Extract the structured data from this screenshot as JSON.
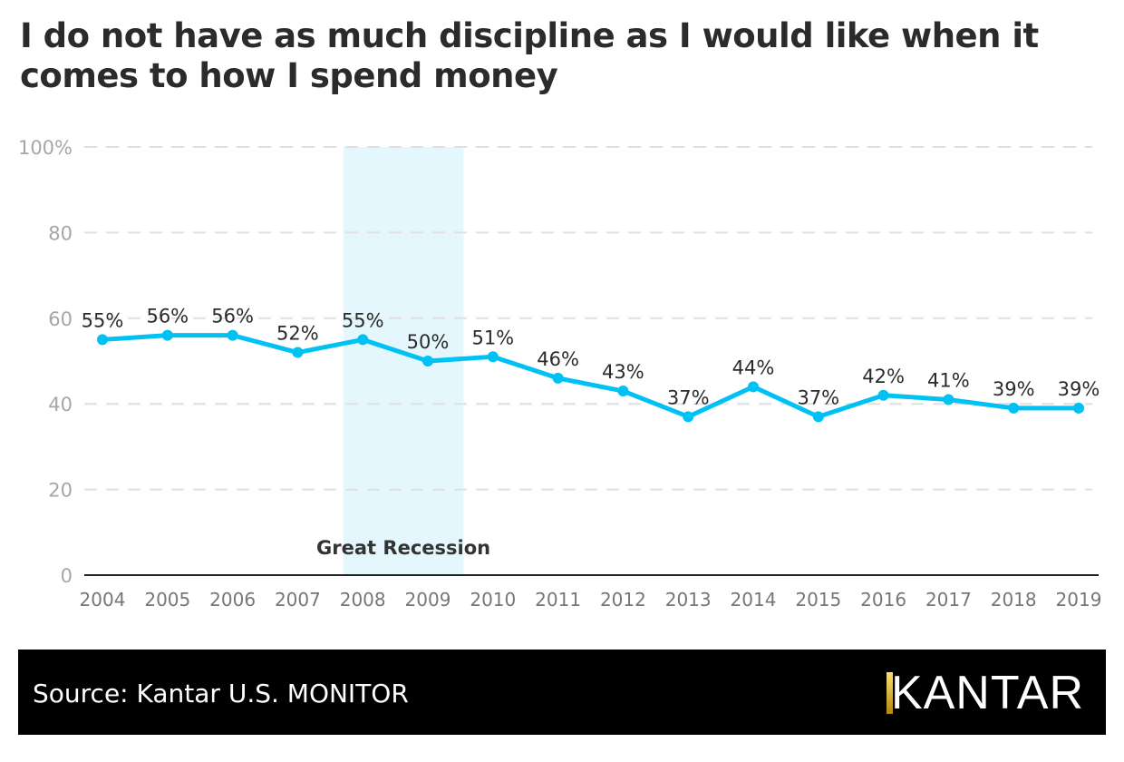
{
  "title": "I do not have as much discipline as I would like when it comes to how I spend money",
  "chart_data": {
    "type": "line",
    "title": "I do not have as much discipline as I would like when it comes to how I spend money",
    "categories": [
      "2004",
      "2005",
      "2006",
      "2007",
      "2008",
      "2009",
      "2010",
      "2011",
      "2012",
      "2013",
      "2014",
      "2015",
      "2016",
      "2017",
      "2018",
      "2019"
    ],
    "values": [
      55,
      56,
      56,
      52,
      55,
      50,
      51,
      46,
      43,
      37,
      44,
      37,
      42,
      41,
      39,
      39
    ],
    "data_labels": [
      "55%",
      "56%",
      "56%",
      "52%",
      "55%",
      "50%",
      "51%",
      "46%",
      "43%",
      "37%",
      "44%",
      "37%",
      "42%",
      "41%",
      "39%",
      "39%"
    ],
    "ylim": [
      0,
      100
    ],
    "yticks": [
      0,
      20,
      40,
      60,
      80,
      100
    ],
    "ytick_labels": [
      "0",
      "20",
      "40",
      "60",
      "80",
      "100%"
    ],
    "grid": true,
    "line_color": "#00c1f3",
    "annotation": {
      "label": "Great Recession",
      "x_range": [
        2007.7,
        2009.55
      ],
      "color": "#e3f7fd"
    }
  },
  "footer": {
    "source": "Source: Kantar U.S. MONITOR",
    "logo": "KANTAR"
  }
}
